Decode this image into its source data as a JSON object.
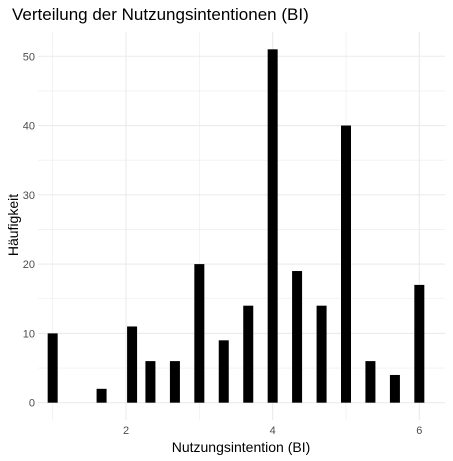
{
  "chart_data": {
    "type": "bar",
    "title": "Verteilung der Nutzungsintentionen (BI)",
    "xlabel": "Nutzungsintention (BI)",
    "ylabel": "Häufigkeit",
    "x": [
      1,
      1.667,
      2.083,
      2.333,
      2.667,
      3,
      3.333,
      3.667,
      4,
      4.333,
      4.667,
      5,
      5.333,
      5.667,
      6
    ],
    "values": [
      10,
      2,
      11,
      6,
      6,
      20,
      9,
      14,
      51,
      19,
      14,
      40,
      6,
      4,
      17
    ],
    "xlim": [
      0.8,
      6.35
    ],
    "ylim": [
      -2.5,
      53.5
    ],
    "xticks": [
      2,
      4,
      6
    ],
    "yticks": [
      0,
      10,
      20,
      30,
      40,
      50
    ],
    "bar_color": "#000000",
    "grid": true,
    "grid_color": "#ebebeb",
    "background": "#ffffff"
  }
}
